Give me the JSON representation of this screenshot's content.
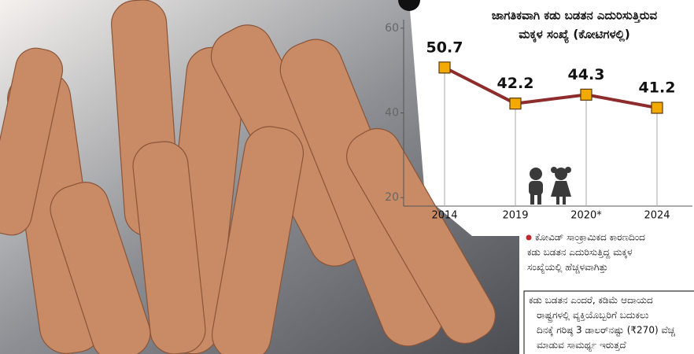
{
  "chart_data": {
    "type": "line",
    "title": [
      "ಜಾಗತಿಕವಾಗಿ ಕಡು ಬಡತನ ಎದುರಿಸುತ್ತಿರುವ",
      "ಮಕ್ಕಳ ಸಂಖ್ಯೆ (ಕೋಟಿಗಳಲ್ಲಿ)"
    ],
    "categories": [
      "2014",
      "2019",
      "2020*",
      "2024"
    ],
    "values": [
      50.7,
      42.2,
      44.3,
      41.2
    ],
    "color": "#8e2b2b",
    "marker_color": "#f2a900",
    "ylim": [
      18,
      62
    ],
    "yticks": [
      20,
      40,
      60
    ]
  },
  "notes": [
    [
      "ಕೋವಿಡ್ ಸಾಂಕ್ರಾಮಿಕದ ಕಾರಣದಿಂದ",
      "ಕಡು ಬಡತನ ಎದುರಿಸುತ್ತಿದ್ದ ಮಕ್ಕಳ",
      "ಸಂಖ್ಯೆಯಲ್ಲಿ ಹೆಚ್ಚಳವಾಗಿತ್ತು"
    ],
    [
      "ಕಡು ಬಡತನ ಎಂದರೆ, ಕಡಿಮೆ ಆದಾಯದ",
      "ರಾಷ್ಟ್ರಗಳಲ್ಲಿ ವ್ಯಕ್ತಿಯೊಬ್ಬರಿಗೆ ಬದುಕಲು",
      "ದಿನಕ್ಕೆ ಗರಿಷ್ಠ 3 ಡಾಲರ್‌ನಷ್ಟು (₹270) ವೆಚ್ಚ",
      "ಮಾಡುವ ಸಾಮರ್ಥ್ಯ ಇರುತ್ತದೆ"
    ]
  ]
}
